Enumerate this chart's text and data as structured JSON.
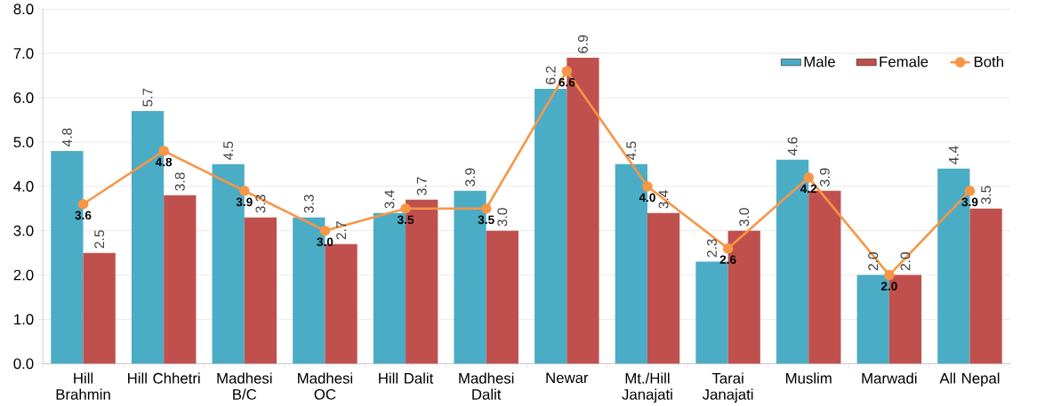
{
  "chart_data": {
    "type": "bar",
    "categories": [
      "Hill Brahmin",
      "Hill Chhetri",
      "Madhesi B/C",
      "Madhesi OC",
      "Hill Dalit",
      "Madhesi Dalit",
      "Newar",
      "Mt./Hill Janajati",
      "Tarai Janajati",
      "Muslim",
      "Marwadi",
      "All Nepal"
    ],
    "series": [
      {
        "name": "Male",
        "color": "#4bacc6",
        "values": [
          4.8,
          5.7,
          4.5,
          3.3,
          3.4,
          3.9,
          6.2,
          4.5,
          2.3,
          4.6,
          2.0,
          4.4
        ],
        "value_labels": [
          "4.8",
          "5.7",
          "4.5",
          "3.3",
          "3.4",
          "3.9",
          "6.2",
          "4.5",
          "2.3",
          "4.6",
          "2.0",
          "4.4"
        ]
      },
      {
        "name": "Female",
        "color": "#c0504d",
        "values": [
          2.5,
          3.8,
          3.3,
          2.7,
          3.7,
          3.0,
          6.9,
          3.4,
          3.0,
          3.9,
          2.0,
          3.5
        ],
        "value_labels": [
          "2.5",
          "3.8",
          "3.3",
          "2.7",
          "3.7",
          "3.0",
          "6.9",
          "3.4",
          "3.0",
          "3.9",
          "2.0",
          "3.5"
        ]
      },
      {
        "name": "Both",
        "type": "line",
        "color": "#f79646",
        "values": [
          3.6,
          4.8,
          3.9,
          3.0,
          3.5,
          3.5,
          6.6,
          4.0,
          2.6,
          4.2,
          2.0,
          3.9
        ],
        "value_labels": [
          "3.6",
          "4.8",
          "3.9",
          "3.0",
          "3.5",
          "3.5",
          "6.6",
          "4.0",
          "2.6",
          "4.2",
          "2.0",
          "3.9"
        ]
      }
    ],
    "ylim": [
      0,
      8
    ],
    "yticks": [
      {
        "value": 0,
        "label": "0.0"
      },
      {
        "value": 1,
        "label": "1.0"
      },
      {
        "value": 2,
        "label": "2.0"
      },
      {
        "value": 3,
        "label": "3.0"
      },
      {
        "value": 4,
        "label": "4.0"
      },
      {
        "value": 5,
        "label": "5.0"
      },
      {
        "value": 6,
        "label": "6.0"
      },
      {
        "value": 7,
        "label": "7.0"
      },
      {
        "value": 8,
        "label": "8.0"
      }
    ],
    "grid": "y",
    "legend": "top right",
    "marker": "circle"
  }
}
